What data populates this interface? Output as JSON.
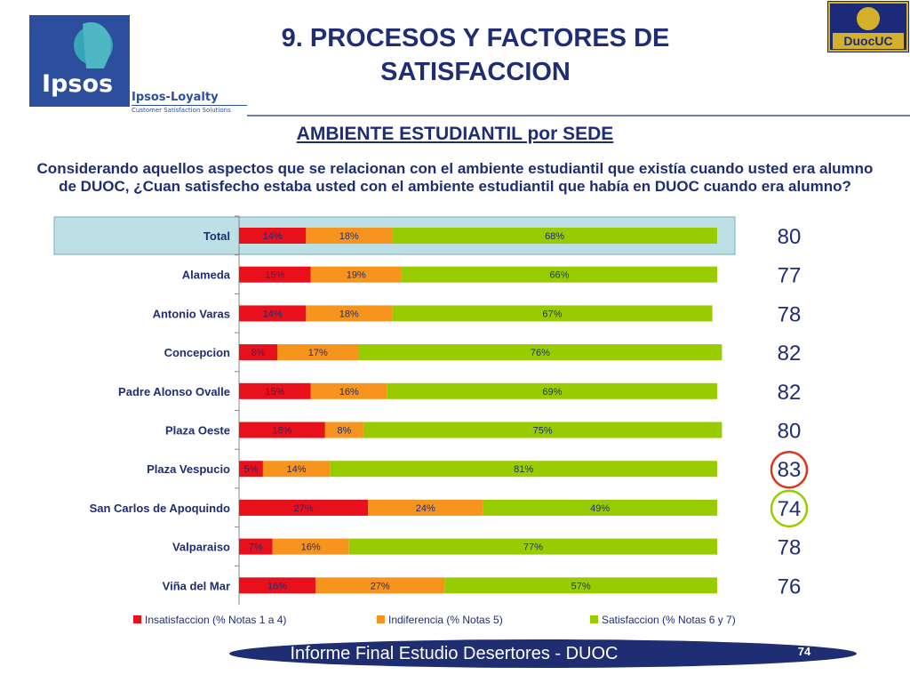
{
  "header": {
    "title_line1": "9. PROCESOS Y FACTORES DE",
    "title_line2": "SATISFACCION",
    "logo_left_text": "Ipsos",
    "loyalty_title": "Ipsos-Loyalty",
    "loyalty_sub": "Customer Satisfaction Solutions",
    "logo_right_text": "DuocUC"
  },
  "subtitle": "AMBIENTE ESTUDIANTIL por SEDE",
  "question": "Considerando aquellos aspectos que se relacionan con el ambiente estudiantil que existía cuando usted era alumno de DUOC, ¿Cuan satisfecho estaba usted con el ambiente estudiantil que había en DUOC cuando era alumno?",
  "footer": {
    "text": "Informe Final Estudio Desertores - DUOC",
    "page": "74"
  },
  "colors": {
    "insatisfaccion": "#e8101a",
    "indiferencia": "#f7941d",
    "satisfaccion": "#99cc00",
    "highlight_row": "#bde0e6",
    "circle_red": "#d9381e",
    "circle_green": "#99cc00",
    "title": "#1f2d72"
  },
  "chart_data": {
    "type": "bar",
    "orientation": "horizontal",
    "stacked": true,
    "categories": [
      "Total",
      "Alameda",
      "Antonio Varas",
      "Concepcion",
      "Padre Alonso Ovalle",
      "Plaza Oeste",
      "Plaza Vespucio",
      "San Carlos de Apoquindo",
      "Valparaiso",
      "Viña del Mar"
    ],
    "series": [
      {
        "name": "Insatisfaccion (% Notas 1 a 4)",
        "values": [
          14,
          15,
          14,
          8,
          15,
          18,
          5,
          27,
          7,
          16
        ]
      },
      {
        "name": "Indiferencia (% Notas 5)",
        "values": [
          18,
          19,
          18,
          17,
          16,
          8,
          14,
          24,
          16,
          27
        ]
      },
      {
        "name": "Satisfaccion (% Notas 6 y 7)",
        "values": [
          68,
          66,
          67,
          76,
          69,
          75,
          81,
          49,
          77,
          57
        ]
      }
    ],
    "value_suffix": "%",
    "scores": [
      80,
      77,
      78,
      82,
      82,
      80,
      83,
      74,
      78,
      76
    ],
    "highlighted_category": "Total",
    "circled": {
      "max": "Plaza Vespucio",
      "min": "San Carlos de Apoquindo"
    },
    "legend_position": "bottom",
    "grid": false
  }
}
